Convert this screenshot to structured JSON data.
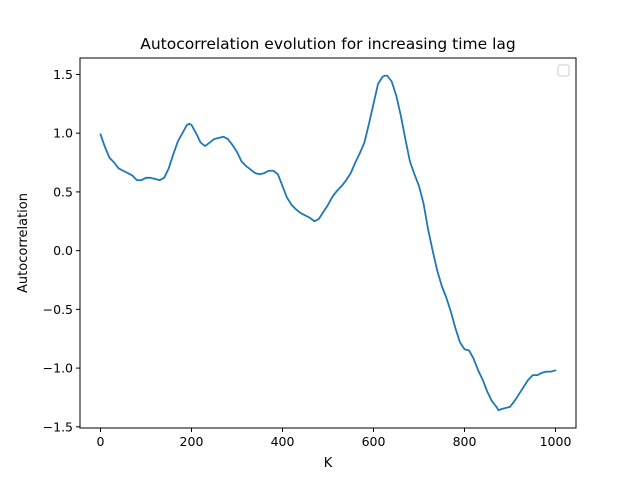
{
  "chart_data": {
    "type": "line",
    "title": "Autocorrelation evolution for increasing time lag",
    "xlabel": "K",
    "ylabel": "Autocorrelation",
    "xlim": [
      -45,
      1045
    ],
    "ylim": [
      -1.51,
      1.64
    ],
    "x_ticks": [
      0,
      200,
      400,
      600,
      800,
      1000
    ],
    "y_ticks": [
      -1.5,
      -1.0,
      -0.5,
      0.0,
      0.5,
      1.0,
      1.5
    ],
    "x_tick_labels": [
      "0",
      "200",
      "400",
      "600",
      "800",
      "1000"
    ],
    "y_tick_labels": [
      "−1.5",
      "−1.0",
      "−0.5",
      "0.0",
      "0.5",
      "1.0",
      "1.5"
    ],
    "grid": false,
    "legend": {
      "placement": "upper-right",
      "entries": []
    },
    "series": [
      {
        "color": "#1f77b4",
        "x": [
          0,
          10,
          20,
          30,
          40,
          50,
          60,
          70,
          80,
          90,
          100,
          110,
          120,
          130,
          140,
          150,
          160,
          170,
          180,
          190,
          195,
          200,
          210,
          220,
          230,
          240,
          250,
          260,
          270,
          280,
          290,
          300,
          310,
          320,
          330,
          340,
          350,
          360,
          370,
          380,
          390,
          400,
          410,
          420,
          430,
          440,
          450,
          460,
          470,
          480,
          490,
          500,
          510,
          520,
          530,
          540,
          550,
          560,
          570,
          580,
          590,
          600,
          610,
          620,
          625,
          630,
          640,
          650,
          660,
          670,
          680,
          690,
          700,
          710,
          720,
          730,
          740,
          750,
          760,
          770,
          780,
          790,
          800,
          810,
          820,
          830,
          840,
          850,
          860,
          870,
          875,
          880,
          890,
          900,
          910,
          920,
          930,
          940,
          950,
          960,
          970,
          980,
          990,
          1000
        ],
        "y": [
          0.99,
          0.88,
          0.79,
          0.75,
          0.7,
          0.68,
          0.66,
          0.64,
          0.6,
          0.6,
          0.62,
          0.62,
          0.61,
          0.6,
          0.62,
          0.7,
          0.82,
          0.93,
          1.0,
          1.07,
          1.08,
          1.07,
          1.0,
          0.92,
          0.89,
          0.92,
          0.95,
          0.96,
          0.97,
          0.95,
          0.9,
          0.84,
          0.76,
          0.72,
          0.69,
          0.66,
          0.65,
          0.66,
          0.68,
          0.68,
          0.65,
          0.55,
          0.45,
          0.39,
          0.35,
          0.32,
          0.3,
          0.28,
          0.25,
          0.27,
          0.33,
          0.39,
          0.46,
          0.51,
          0.55,
          0.6,
          0.66,
          0.75,
          0.83,
          0.92,
          1.08,
          1.25,
          1.42,
          1.48,
          1.49,
          1.49,
          1.44,
          1.32,
          1.15,
          0.95,
          0.76,
          0.65,
          0.55,
          0.4,
          0.18,
          0.0,
          -0.17,
          -0.3,
          -0.4,
          -0.52,
          -0.66,
          -0.78,
          -0.84,
          -0.85,
          -0.92,
          -1.02,
          -1.1,
          -1.2,
          -1.28,
          -1.33,
          -1.36,
          -1.35,
          -1.34,
          -1.33,
          -1.28,
          -1.22,
          -1.16,
          -1.1,
          -1.06,
          -1.06,
          -1.04,
          -1.03,
          -1.03,
          -1.02
        ]
      }
    ]
  }
}
